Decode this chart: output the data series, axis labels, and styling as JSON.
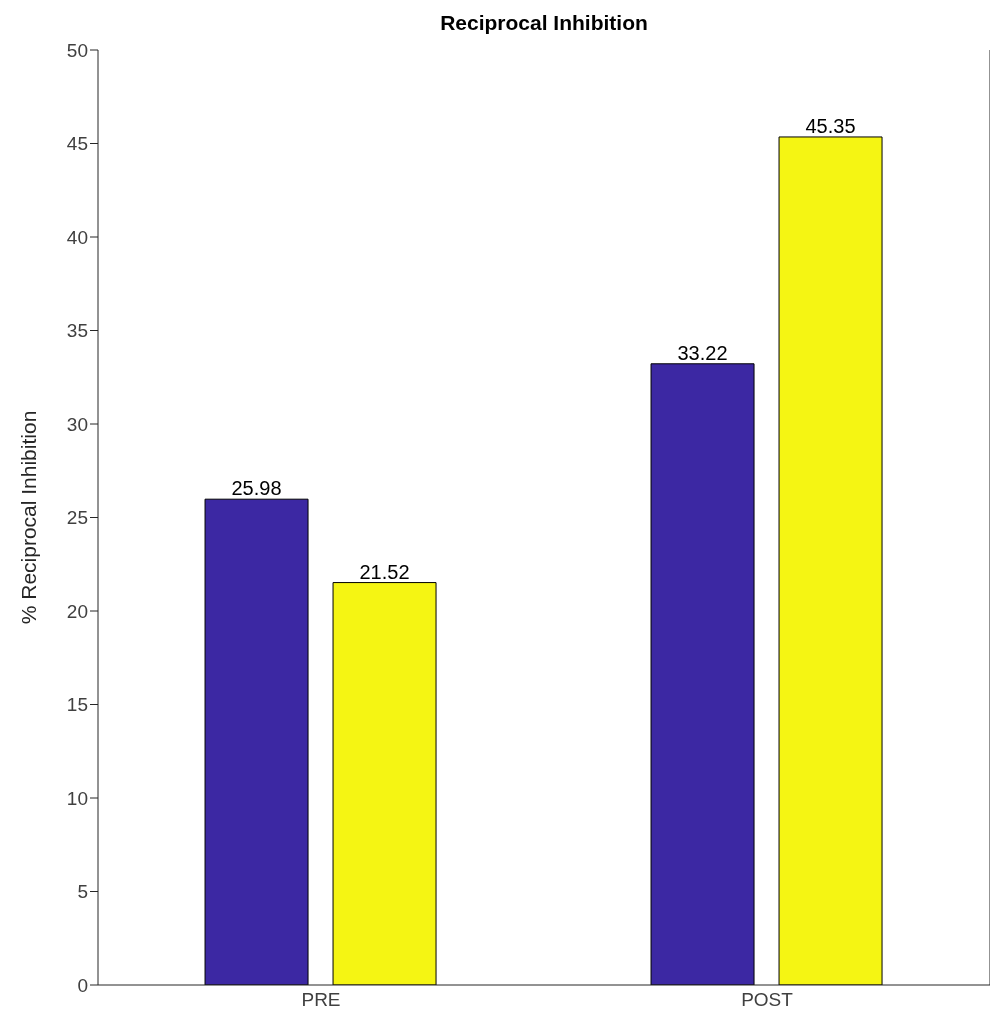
{
  "chart_data": {
    "type": "bar",
    "title": "Reciprocal Inhibition",
    "ylabel": "% Reciprocal Inhibition",
    "categories": [
      "PRE",
      "POST"
    ],
    "series": [
      {
        "color": "#3c28a3",
        "values": [
          25.98,
          33.22
        ]
      },
      {
        "color": "#f5f513",
        "values": [
          21.52,
          45.35
        ]
      }
    ],
    "ylim": [
      0,
      50
    ],
    "yticks": [
      0,
      5,
      10,
      15,
      20,
      25,
      30,
      35,
      40,
      45,
      50
    ],
    "data_labels": true,
    "grid": false,
    "legend": false
  }
}
